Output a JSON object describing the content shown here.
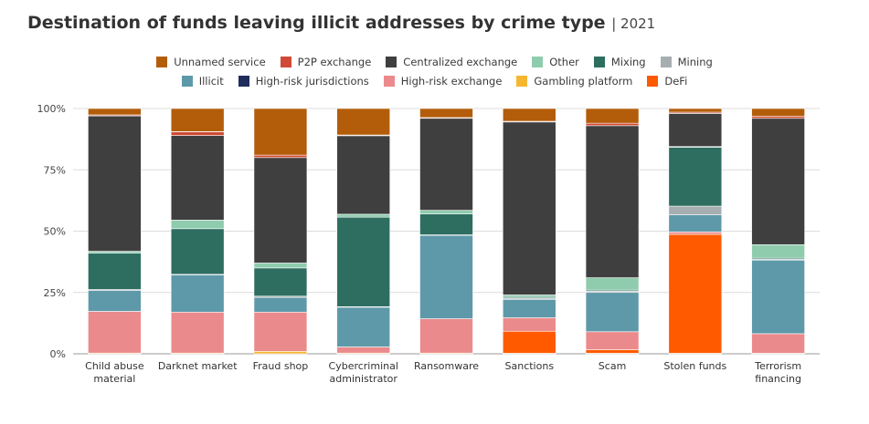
{
  "header": {
    "title": "Destination of funds leaving illicit addresses by crime type",
    "year": "2021"
  },
  "chart_data": {
    "type": "bar",
    "stacked": true,
    "title": "Destination of funds leaving illicit addresses by crime type | 2021",
    "xlabel": "",
    "ylabel": "",
    "ylim": [
      0,
      100
    ],
    "yticks": [
      "0%",
      "25%",
      "50%",
      "75%",
      "100%"
    ],
    "grid": true,
    "legend_position": "top",
    "categories": [
      [
        "Child abuse",
        "material"
      ],
      [
        "Darknet market"
      ],
      [
        "Fraud shop"
      ],
      [
        "Cybercriminal",
        "administrator"
      ],
      [
        "Ransomware"
      ],
      [
        "Sanctions"
      ],
      [
        "Scam"
      ],
      [
        "Stolen funds"
      ],
      [
        "Terrorism",
        "financing"
      ]
    ],
    "series": [
      {
        "name": "Gambling platform",
        "color": "#F5B731",
        "values": [
          0.3,
          0.3,
          1.0,
          0.3,
          0.3,
          0.2,
          0.2,
          0.2,
          0.2
        ]
      },
      {
        "name": "DeFi",
        "color": "#FF5A00",
        "values": [
          0,
          0,
          0,
          0,
          0,
          9.0,
          1.5,
          48.5,
          0
        ]
      },
      {
        "name": "High-risk exchange",
        "color": "#EB8A8C",
        "values": [
          17.0,
          16.7,
          16.0,
          2.5,
          14.0,
          5.5,
          7.3,
          1.0,
          8.0
        ]
      },
      {
        "name": "Illicit",
        "color": "#5E99A9",
        "values": [
          8.5,
          15.2,
          6.0,
          16.2,
          34.0,
          7.5,
          16.0,
          7.0,
          30.0
        ]
      },
      {
        "name": "Mining",
        "color": "#A7AEB2",
        "values": [
          0.4,
          0.2,
          0.5,
          0.2,
          0.2,
          0.4,
          0.5,
          3.5,
          0.3
        ]
      },
      {
        "name": "Mixing",
        "color": "#2E6E61",
        "values": [
          14.8,
          18.6,
          11.5,
          36.5,
          8.5,
          0.4,
          0.5,
          24.0,
          0.5
        ]
      },
      {
        "name": "Other",
        "color": "#8FCCAE",
        "values": [
          0.8,
          3.5,
          2.0,
          1.2,
          1.5,
          1.0,
          5.0,
          0.3,
          5.5
        ]
      },
      {
        "name": "Centralized exchange",
        "color": "#3F3F3F",
        "values": [
          55.2,
          34.5,
          43.0,
          32.0,
          37.5,
          70.5,
          62.0,
          13.5,
          51.5
        ]
      },
      {
        "name": "P2P exchange",
        "color": "#D04A35",
        "values": [
          0.4,
          1.5,
          1.0,
          0.3,
          0.3,
          0.3,
          1.0,
          0.5,
          0.8
        ]
      },
      {
        "name": "High-risk jurisdictions",
        "color": "#1F2C5C",
        "values": [
          0,
          0.1,
          0,
          0,
          0,
          0,
          0,
          0,
          0
        ]
      },
      {
        "name": "Unnamed service",
        "color": "#B35D0A",
        "values": [
          2.6,
          9.4,
          19.0,
          10.8,
          3.7,
          5.2,
          6.0,
          1.5,
          3.2
        ]
      }
    ],
    "legend_rows": [
      [
        "Unnamed service",
        "P2P exchange",
        "Centralized exchange",
        "Other",
        "Mixing",
        "Mining"
      ],
      [
        "Illicit",
        "High-risk jurisdictions",
        "High-risk exchange",
        "Gambling platform",
        "DeFi"
      ]
    ]
  }
}
